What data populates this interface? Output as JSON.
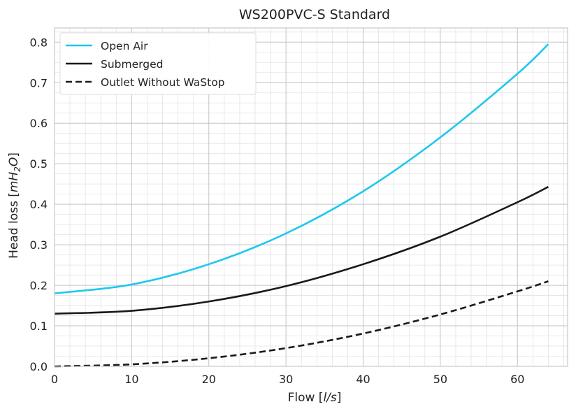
{
  "chart_data": {
    "type": "line",
    "title": "WS200PVC-S Standard",
    "xlabel": {
      "prefix": "Flow [",
      "unit": "l/s",
      "suffix": "]"
    },
    "ylabel": {
      "prefix": "Head loss [",
      "unit_main": "mH",
      "unit_sub": "2",
      "unit_end": "O",
      "suffix": "]"
    },
    "xlim": [
      0,
      66.5
    ],
    "ylim": [
      0,
      0.835
    ],
    "x_ticks": [
      "0",
      "10",
      "20",
      "30",
      "40",
      "50",
      "60"
    ],
    "y_ticks": [
      "0.0",
      "0.1",
      "0.2",
      "0.3",
      "0.4",
      "0.5",
      "0.6",
      "0.7",
      "0.8"
    ],
    "grid": "on (major and minor)",
    "legend_position": "top-left",
    "series": [
      {
        "name": "Open Air",
        "color": "#1ec8ee",
        "style": "solid",
        "x": [
          0,
          10,
          20,
          30,
          40,
          50,
          60,
          64
        ],
        "y": [
          0.18,
          0.202,
          0.252,
          0.328,
          0.432,
          0.565,
          0.722,
          0.795
        ]
      },
      {
        "name": "Submerged",
        "color": "#1a1a1a",
        "style": "solid",
        "x": [
          0,
          10,
          20,
          30,
          40,
          50,
          60,
          64
        ],
        "y": [
          0.13,
          0.137,
          0.16,
          0.198,
          0.252,
          0.32,
          0.405,
          0.443
        ]
      },
      {
        "name": "Outlet Without WaStop",
        "color": "#1a1a1a",
        "style": "dashed",
        "x": [
          0,
          10,
          20,
          30,
          40,
          50,
          60,
          64
        ],
        "y": [
          0.0,
          0.005,
          0.02,
          0.045,
          0.081,
          0.128,
          0.185,
          0.21
        ]
      }
    ]
  }
}
